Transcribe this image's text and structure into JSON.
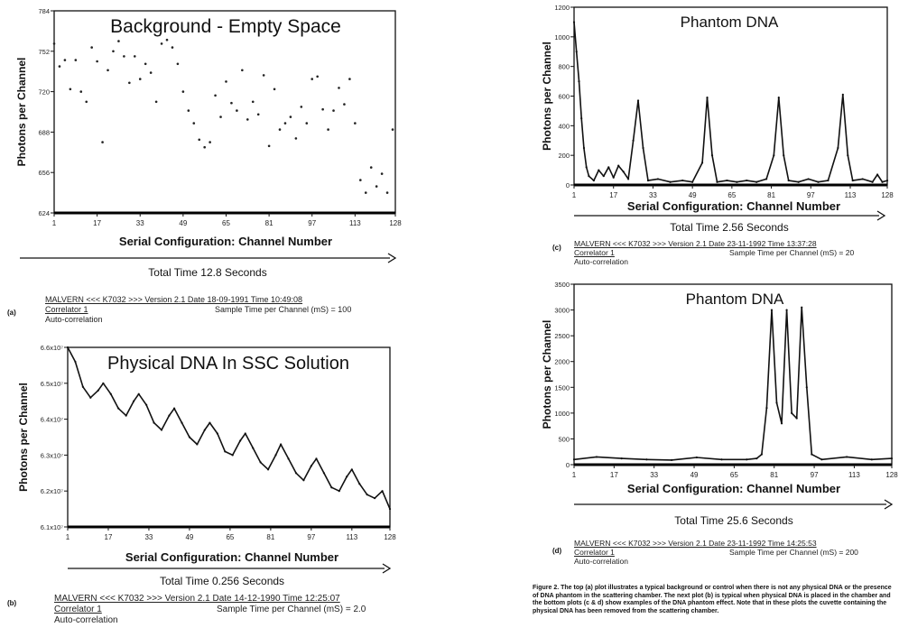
{
  "chart_data": [
    {
      "id": "a",
      "type": "scatter",
      "panel_label": "(a)",
      "title": "Background - Empty Space",
      "xlabel": "Serial Configuration: Channel Number",
      "ylabel": "Photons per Channel",
      "x_ticks": [
        "1",
        "17",
        "33",
        "49",
        "65",
        "81",
        "97",
        "113",
        "128"
      ],
      "y_ticks": [
        "624",
        "656",
        "688",
        "720",
        "752",
        "784"
      ],
      "xlim": [
        1,
        128
      ],
      "ylim": [
        624,
        784
      ],
      "time_label": "Total Time 12.8  Seconds",
      "info_line": "MALVERN <<< K7032 >>> Version 2.1  Date 18-09-1991  Time 10:49:08",
      "correlator": "Correlator 1",
      "sample_time": "Sample Time per Channel  (mS)  =  100",
      "mode": "Auto-correlation",
      "points": [
        [
          1,
          758
        ],
        [
          3,
          740
        ],
        [
          5,
          745
        ],
        [
          7,
          722
        ],
        [
          9,
          745
        ],
        [
          11,
          720
        ],
        [
          13,
          712
        ],
        [
          15,
          755
        ],
        [
          17,
          744
        ],
        [
          19,
          680
        ],
        [
          21,
          737
        ],
        [
          23,
          752
        ],
        [
          25,
          760
        ],
        [
          27,
          748
        ],
        [
          29,
          727
        ],
        [
          31,
          748
        ],
        [
          33,
          730
        ],
        [
          35,
          742
        ],
        [
          37,
          735
        ],
        [
          39,
          712
        ],
        [
          41,
          758
        ],
        [
          43,
          761
        ],
        [
          45,
          755
        ],
        [
          47,
          742
        ],
        [
          49,
          720
        ],
        [
          51,
          705
        ],
        [
          53,
          695
        ],
        [
          55,
          682
        ],
        [
          57,
          676
        ],
        [
          59,
          680
        ],
        [
          61,
          717
        ],
        [
          63,
          700
        ],
        [
          65,
          728
        ],
        [
          67,
          711
        ],
        [
          69,
          705
        ],
        [
          71,
          737
        ],
        [
          73,
          698
        ],
        [
          75,
          712
        ],
        [
          77,
          702
        ],
        [
          79,
          733
        ],
        [
          81,
          677
        ],
        [
          83,
          722
        ],
        [
          85,
          690
        ],
        [
          87,
          695
        ],
        [
          89,
          700
        ],
        [
          91,
          683
        ],
        [
          93,
          708
        ],
        [
          95,
          695
        ],
        [
          97,
          730
        ],
        [
          99,
          732
        ],
        [
          101,
          706
        ],
        [
          103,
          690
        ],
        [
          105,
          705
        ],
        [
          107,
          723
        ],
        [
          109,
          710
        ],
        [
          111,
          730
        ],
        [
          113,
          695
        ],
        [
          115,
          650
        ],
        [
          117,
          640
        ],
        [
          119,
          660
        ],
        [
          121,
          645
        ],
        [
          123,
          655
        ],
        [
          125,
          640
        ],
        [
          127,
          690
        ]
      ]
    },
    {
      "id": "b",
      "type": "line",
      "panel_label": "(b)",
      "title": "Physical DNA In SSC Solution",
      "xlabel": "Serial Configuration: Channel Number",
      "ylabel": "Photons per Channel",
      "x_ticks": [
        "1",
        "17",
        "33",
        "49",
        "65",
        "81",
        "97",
        "113",
        "128"
      ],
      "y_ticks": [
        "6.1x10⁷",
        "6.2x10⁷",
        "6.3x10⁷",
        "6.4x10⁷",
        "6.5x10⁷",
        "6.6x10⁷"
      ],
      "xlim": [
        1,
        128
      ],
      "ylim": [
        6.1,
        6.6
      ],
      "y_scale_note": "values in units of 10⁷",
      "time_label": "Total Time 0.256  Seconds",
      "info_line": "MALVERN  <<<  K7032  >>>  Version 2.1  Date  14-12-1990  Time  12:25:07",
      "correlator": "Correlator 1",
      "sample_time": "Sample Time per Channel  (mS)  =  2.0",
      "mode": "Auto-correlation",
      "points": [
        [
          1,
          6.6
        ],
        [
          4,
          6.56
        ],
        [
          7,
          6.49
        ],
        [
          10,
          6.46
        ],
        [
          13,
          6.48
        ],
        [
          15,
          6.5
        ],
        [
          18,
          6.47
        ],
        [
          21,
          6.43
        ],
        [
          24,
          6.41
        ],
        [
          27,
          6.45
        ],
        [
          29,
          6.47
        ],
        [
          32,
          6.44
        ],
        [
          35,
          6.39
        ],
        [
          38,
          6.37
        ],
        [
          41,
          6.41
        ],
        [
          43,
          6.43
        ],
        [
          46,
          6.39
        ],
        [
          49,
          6.35
        ],
        [
          52,
          6.33
        ],
        [
          55,
          6.37
        ],
        [
          57,
          6.39
        ],
        [
          60,
          6.36
        ],
        [
          63,
          6.31
        ],
        [
          66,
          6.3
        ],
        [
          69,
          6.34
        ],
        [
          71,
          6.36
        ],
        [
          74,
          6.32
        ],
        [
          77,
          6.28
        ],
        [
          80,
          6.26
        ],
        [
          83,
          6.3
        ],
        [
          85,
          6.33
        ],
        [
          88,
          6.29
        ],
        [
          91,
          6.25
        ],
        [
          94,
          6.23
        ],
        [
          97,
          6.27
        ],
        [
          99,
          6.29
        ],
        [
          102,
          6.25
        ],
        [
          105,
          6.21
        ],
        [
          108,
          6.2
        ],
        [
          111,
          6.24
        ],
        [
          113,
          6.26
        ],
        [
          116,
          6.22
        ],
        [
          119,
          6.19
        ],
        [
          122,
          6.18
        ],
        [
          125,
          6.2
        ],
        [
          128,
          6.15
        ]
      ]
    },
    {
      "id": "c",
      "type": "line",
      "panel_label": "(c)",
      "title": "Phantom DNA",
      "xlabel": "Serial Configuration: Channel Number",
      "ylabel": "Photons per Channel",
      "x_ticks": [
        "1",
        "17",
        "33",
        "49",
        "65",
        "81",
        "97",
        "113",
        "128"
      ],
      "y_ticks": [
        "0",
        "200",
        "400",
        "600",
        "800",
        "1000",
        "1200"
      ],
      "xlim": [
        1,
        128
      ],
      "ylim": [
        0,
        1200
      ],
      "time_label": "Total Time 2.56 Seconds",
      "info_line": "MALVERN  <<< K7032 >>>  Version 2.1  Date 23-11-1992  Time 13:37:28",
      "correlator": "Correlator 1",
      "sample_time": "Sample Time per Channel  (mS)  =  20",
      "mode": "Auto-correlation",
      "points": [
        [
          1,
          1100
        ],
        [
          2,
          900
        ],
        [
          3,
          700
        ],
        [
          4,
          450
        ],
        [
          5,
          250
        ],
        [
          6,
          120
        ],
        [
          7,
          60
        ],
        [
          9,
          30
        ],
        [
          11,
          100
        ],
        [
          13,
          60
        ],
        [
          15,
          120
        ],
        [
          17,
          50
        ],
        [
          19,
          130
        ],
        [
          21,
          90
        ],
        [
          23,
          40
        ],
        [
          25,
          300
        ],
        [
          27,
          570
        ],
        [
          29,
          250
        ],
        [
          31,
          30
        ],
        [
          35,
          40
        ],
        [
          40,
          20
        ],
        [
          45,
          30
        ],
        [
          49,
          20
        ],
        [
          53,
          150
        ],
        [
          55,
          590
        ],
        [
          57,
          200
        ],
        [
          59,
          20
        ],
        [
          63,
          30
        ],
        [
          67,
          20
        ],
        [
          71,
          30
        ],
        [
          75,
          20
        ],
        [
          79,
          40
        ],
        [
          82,
          200
        ],
        [
          84,
          590
        ],
        [
          86,
          200
        ],
        [
          88,
          30
        ],
        [
          92,
          20
        ],
        [
          96,
          40
        ],
        [
          100,
          20
        ],
        [
          104,
          30
        ],
        [
          108,
          250
        ],
        [
          110,
          610
        ],
        [
          112,
          200
        ],
        [
          114,
          30
        ],
        [
          118,
          40
        ],
        [
          122,
          20
        ],
        [
          124,
          70
        ],
        [
          126,
          20
        ],
        [
          128,
          30
        ]
      ]
    },
    {
      "id": "d",
      "type": "line",
      "panel_label": "(d)",
      "title": "Phantom DNA",
      "xlabel": "Serial Configuration: Channel Number",
      "ylabel": "Photons per Channel",
      "x_ticks": [
        "1",
        "17",
        "33",
        "49",
        "65",
        "81",
        "97",
        "113",
        "128"
      ],
      "y_ticks": [
        "0",
        "500",
        "1000",
        "1500",
        "2000",
        "2500",
        "3000",
        "3500"
      ],
      "xlim": [
        1,
        128
      ],
      "ylim": [
        0,
        3500
      ],
      "time_label": "Total Time 25.6 Seconds",
      "info_line": "MALVERN  <<< K7032  >>> Version 2.1  Date  23-11-1992  Time  14:25:53",
      "correlator": "Correlator 1",
      "sample_time": "Sample Time per Channel  (mS)  =  200",
      "mode": "Auto-correlation",
      "points": [
        [
          1,
          100
        ],
        [
          10,
          150
        ],
        [
          20,
          120
        ],
        [
          30,
          100
        ],
        [
          40,
          90
        ],
        [
          50,
          140
        ],
        [
          60,
          100
        ],
        [
          70,
          100
        ],
        [
          74,
          120
        ],
        [
          76,
          200
        ],
        [
          78,
          1100
        ],
        [
          80,
          3000
        ],
        [
          82,
          1200
        ],
        [
          84,
          800
        ],
        [
          86,
          3000
        ],
        [
          88,
          1000
        ],
        [
          90,
          900
        ],
        [
          92,
          3050
        ],
        [
          94,
          1500
        ],
        [
          96,
          200
        ],
        [
          100,
          100
        ],
        [
          110,
          150
        ],
        [
          120,
          100
        ],
        [
          128,
          120
        ]
      ]
    }
  ],
  "figure_caption": "Figure 2. The top (a) plot illustrates a typical background or control when there is not any physical DNA or the presence of DNA phantom in the scattering chamber. The next plot (b) is typical when physical DNA is placed in the chamber and the bottom plots (c & d) show examples of the DNA phantom effect. Note that in these plots the cuvette containing the physical DNA has been removed from the scattering chamber."
}
